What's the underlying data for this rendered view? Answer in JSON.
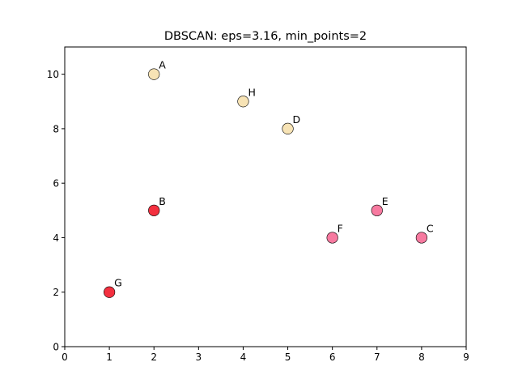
{
  "chart_data": {
    "type": "scatter",
    "title": "DBSCAN: eps=3.16, min_points=2",
    "xlabel": "",
    "ylabel": "",
    "xlim": [
      0,
      9
    ],
    "ylim": [
      0,
      11
    ],
    "x_ticks": [
      0,
      1,
      2,
      3,
      4,
      5,
      6,
      7,
      8,
      9
    ],
    "y_ticks": [
      0,
      2,
      4,
      6,
      8,
      10
    ],
    "grid": false,
    "points": [
      {
        "label": "A",
        "x": 2,
        "y": 10,
        "color": "#f7e3b5"
      },
      {
        "label": "H",
        "x": 4,
        "y": 9,
        "color": "#f7e3b5"
      },
      {
        "label": "D",
        "x": 5,
        "y": 8,
        "color": "#f7e3b5"
      },
      {
        "label": "B",
        "x": 2,
        "y": 5,
        "color": "#f3303f"
      },
      {
        "label": "G",
        "x": 1,
        "y": 2,
        "color": "#f3303f"
      },
      {
        "label": "E",
        "x": 7,
        "y": 5,
        "color": "#f77aa0"
      },
      {
        "label": "F",
        "x": 6,
        "y": 4,
        "color": "#f77aa0"
      },
      {
        "label": "C",
        "x": 8,
        "y": 4,
        "color": "#f77aa0"
      }
    ]
  }
}
